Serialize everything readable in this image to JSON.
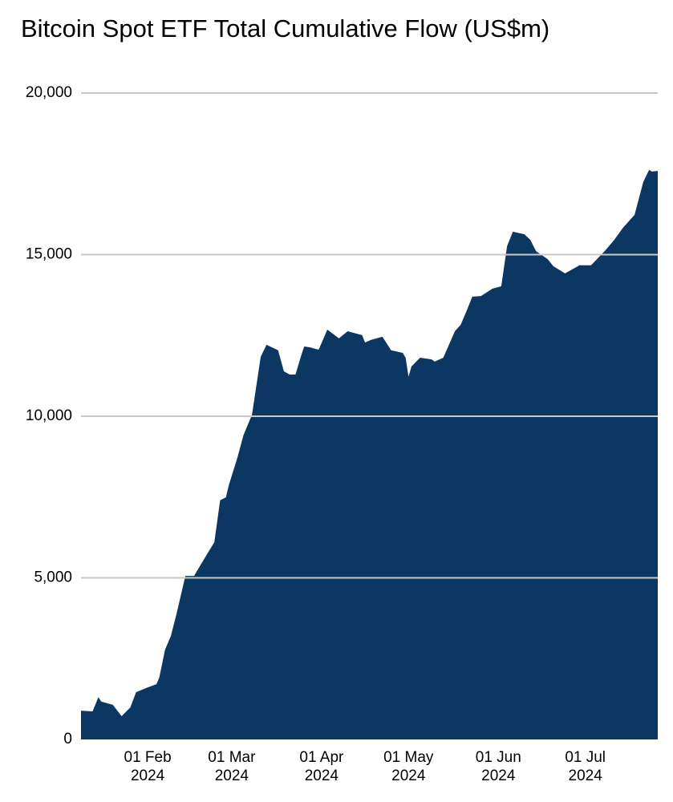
{
  "chart_data": {
    "type": "area",
    "title": "Bitcoin Spot ETF Total Cumulative Flow (US$m)",
    "x": [
      "2024-01-09",
      "2024-01-13",
      "2024-01-15",
      "2024-01-16",
      "2024-01-20",
      "2024-01-23",
      "2024-01-26",
      "2024-01-28",
      "2024-02-01",
      "2024-02-04",
      "2024-02-05",
      "2024-02-07",
      "2024-02-09",
      "2024-02-11",
      "2024-02-14",
      "2024-02-17",
      "2024-02-18",
      "2024-02-22",
      "2024-02-24",
      "2024-02-26",
      "2024-02-28",
      "2024-02-29",
      "2024-03-03",
      "2024-03-05",
      "2024-03-08",
      "2024-03-11",
      "2024-03-13",
      "2024-03-17",
      "2024-03-19",
      "2024-03-21",
      "2024-03-23",
      "2024-03-25",
      "2024-03-26",
      "2024-03-28",
      "2024-03-31",
      "2024-04-03",
      "2024-04-07",
      "2024-04-10",
      "2024-04-15",
      "2024-04-16",
      "2024-04-18",
      "2024-04-22",
      "2024-04-25",
      "2024-04-29",
      "2024-04-30",
      "2024-05-01",
      "2024-05-02",
      "2024-05-05",
      "2024-05-09",
      "2024-05-10",
      "2024-05-13",
      "2024-05-17",
      "2024-05-19",
      "2024-05-21",
      "2024-05-23",
      "2024-05-26",
      "2024-05-30",
      "2024-06-02",
      "2024-06-04",
      "2024-06-06",
      "2024-06-10",
      "2024-06-12",
      "2024-06-14",
      "2024-06-18",
      "2024-06-20",
      "2024-06-24",
      "2024-06-29",
      "2024-07-03",
      "2024-07-08",
      "2024-07-11",
      "2024-07-14",
      "2024-07-18",
      "2024-07-21",
      "2024-07-23",
      "2024-07-24",
      "2024-07-26"
    ],
    "values": [
      890,
      870,
      1310,
      1170,
      1070,
      720,
      990,
      1460,
      1610,
      1710,
      1910,
      2780,
      3200,
      3900,
      5060,
      5060,
      5210,
      5810,
      6100,
      7400,
      7490,
      7870,
      8730,
      9400,
      10050,
      11840,
      12210,
      12040,
      11390,
      11290,
      11290,
      11890,
      12160,
      12130,
      12060,
      12680,
      12410,
      12630,
      12510,
      12280,
      12360,
      12460,
      12040,
      11960,
      11810,
      11220,
      11540,
      11810,
      11760,
      11690,
      11810,
      12630,
      12830,
      13250,
      13700,
      13720,
      13950,
      14020,
      15260,
      15710,
      15630,
      15460,
      15110,
      14860,
      14640,
      14420,
      14670,
      14670,
      15140,
      15460,
      15830,
      16230,
      17250,
      17620,
      17570,
      17590
    ],
    "color": "#0b3762",
    "xlim": [
      "2024-01-09",
      "2024-07-26"
    ],
    "xticks": [
      {
        "value": "2024-02-01",
        "label": "01 Feb 2024"
      },
      {
        "value": "2024-03-01",
        "label": "01 Mar 2024"
      },
      {
        "value": "2024-04-01",
        "label": "01 Apr 2024"
      },
      {
        "value": "2024-05-01",
        "label": "01 May 2024"
      },
      {
        "value": "2024-06-01",
        "label": "01 Jun 2024"
      },
      {
        "value": "2024-07-01",
        "label": "01 Jul 2024"
      }
    ],
    "ylim": [
      0,
      20000
    ],
    "yticks": [
      0,
      {
        "value": 5000,
        "label": "5,000"
      },
      {
        "value": 10000,
        "label": "10,000"
      },
      {
        "value": 15000,
        "label": "15,000"
      },
      {
        "value": 20000,
        "label": "20,000"
      }
    ],
    "grid": true
  }
}
